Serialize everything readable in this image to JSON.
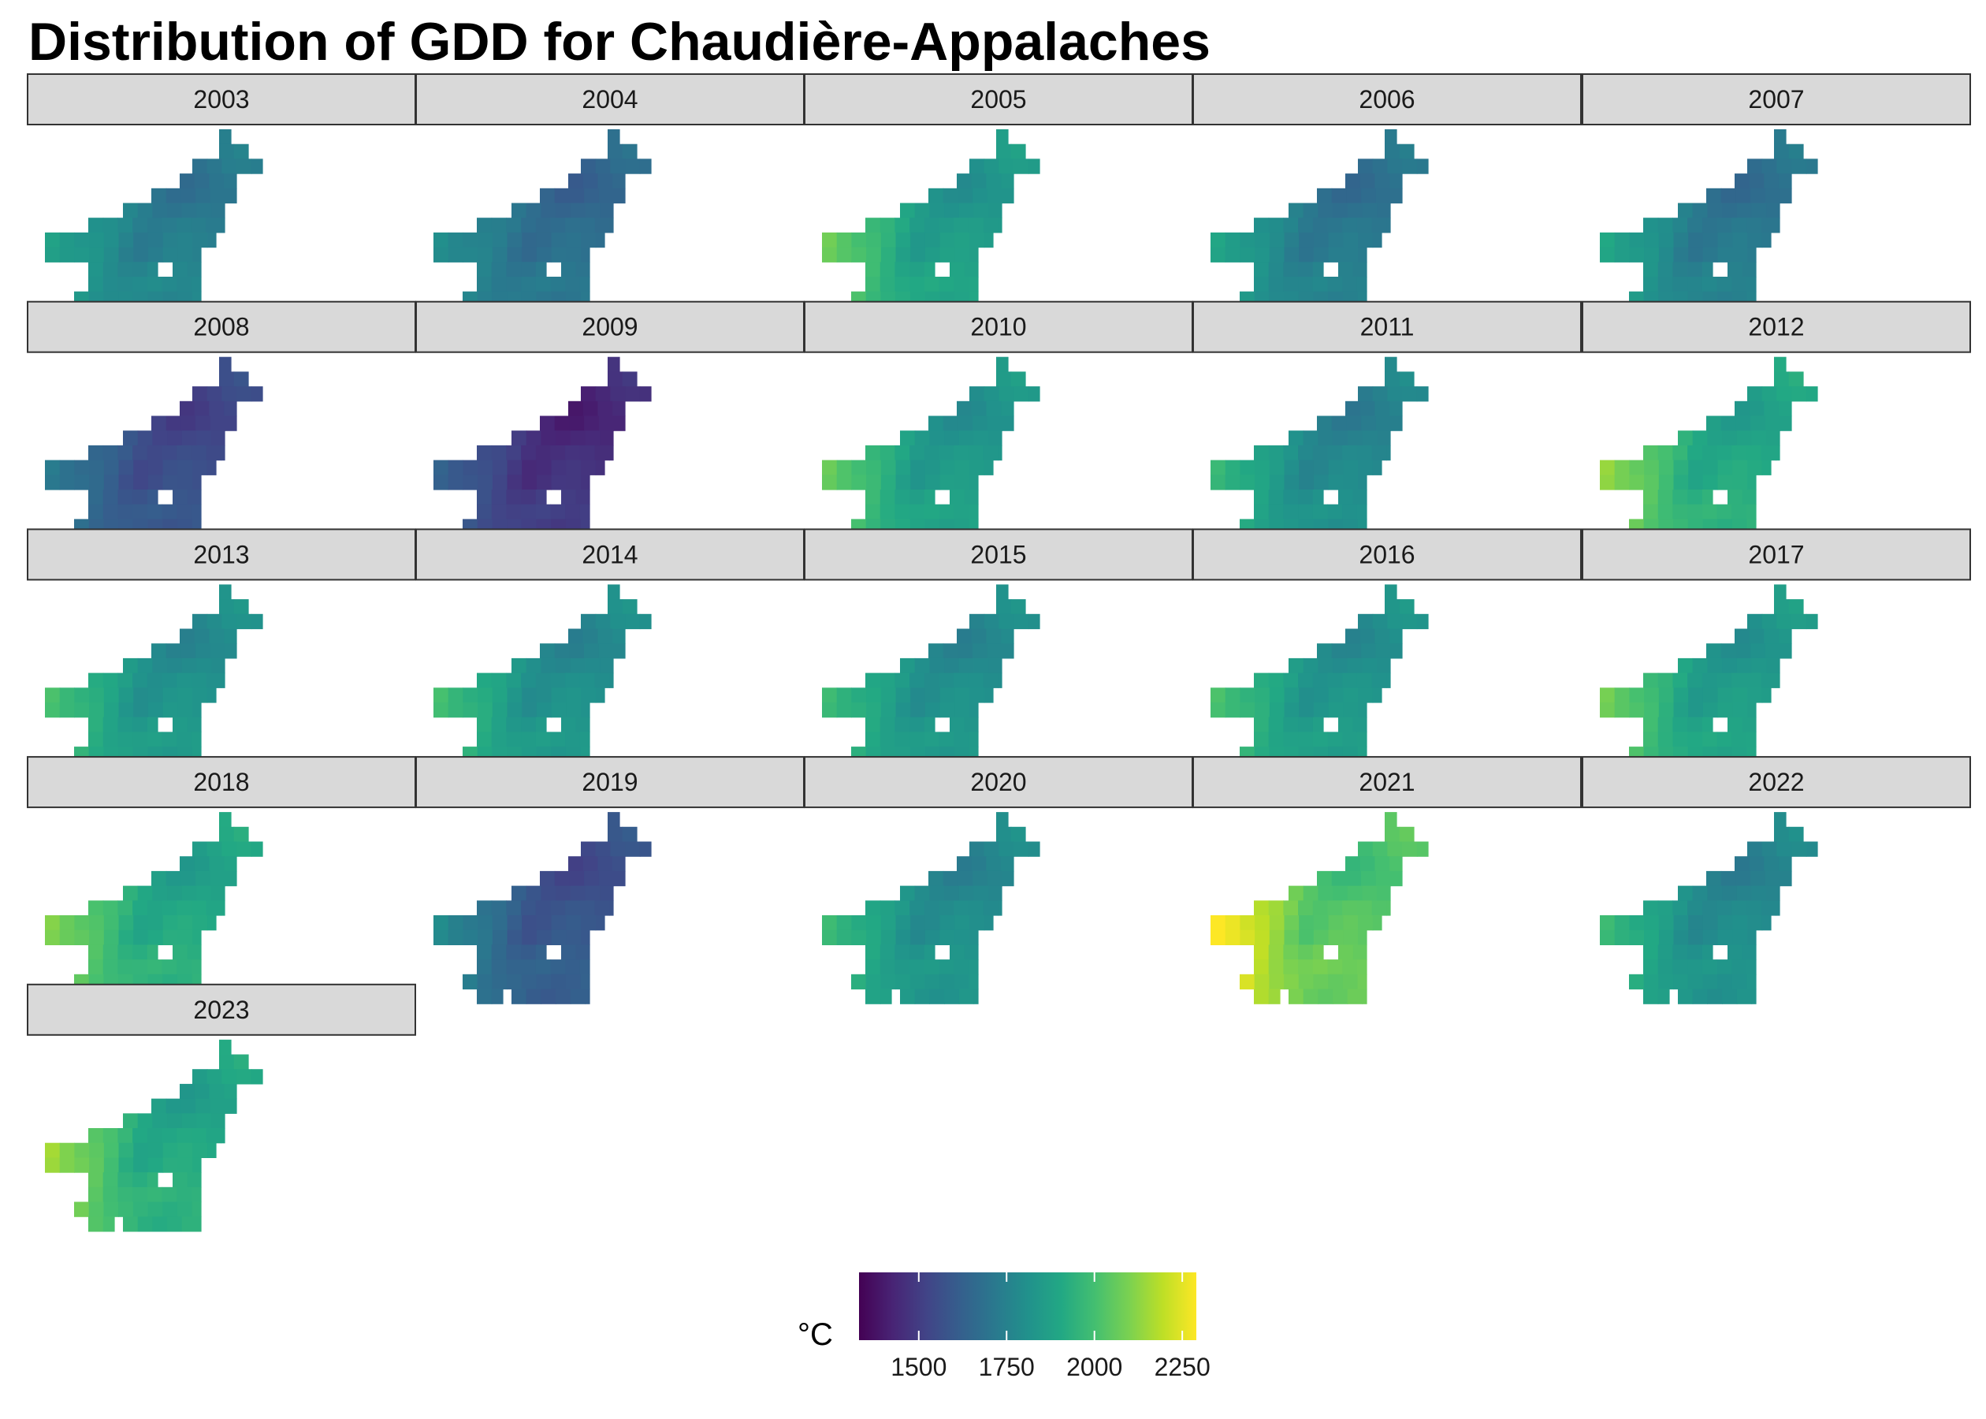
{
  "chart_data": {
    "type": "heatmap",
    "title": "Distribution of GDD for Chaudière-Appalaches",
    "facet_by": "year",
    "panels": [
      {
        "year": "2003",
        "base": 1760,
        "west_gradient": 130
      },
      {
        "year": "2004",
        "base": 1700,
        "west_gradient": 110
      },
      {
        "year": "2005",
        "base": 1880,
        "west_gradient": 220
      },
      {
        "year": "2006",
        "base": 1740,
        "west_gradient": 170
      },
      {
        "year": "2007",
        "base": 1740,
        "west_gradient": 180
      },
      {
        "year": "2008",
        "base": 1580,
        "west_gradient": 160
      },
      {
        "year": "2009",
        "base": 1490,
        "west_gradient": 160
      },
      {
        "year": "2010",
        "base": 1870,
        "west_gradient": 220
      },
      {
        "year": "2011",
        "base": 1800,
        "west_gradient": 190
      },
      {
        "year": "2012",
        "base": 1930,
        "west_gradient": 230
      },
      {
        "year": "2013",
        "base": 1840,
        "west_gradient": 190
      },
      {
        "year": "2014",
        "base": 1830,
        "west_gradient": 190
      },
      {
        "year": "2015",
        "base": 1830,
        "west_gradient": 170
      },
      {
        "year": "2016",
        "base": 1850,
        "west_gradient": 180
      },
      {
        "year": "2017",
        "base": 1880,
        "west_gradient": 230
      },
      {
        "year": "2018",
        "base": 1930,
        "west_gradient": 200
      },
      {
        "year": "2019",
        "base": 1610,
        "west_gradient": 200
      },
      {
        "year": "2020",
        "base": 1820,
        "west_gradient": 180
      },
      {
        "year": "2021",
        "base": 2060,
        "west_gradient": 290
      },
      {
        "year": "2022",
        "base": 1810,
        "west_gradient": 190
      },
      {
        "year": "2023",
        "base": 1930,
        "west_gradient": 250
      }
    ],
    "legend": {
      "title": "°C",
      "position": "bottom",
      "colorscale": "viridis",
      "range": [
        1330,
        2290
      ],
      "ticks": [
        1500,
        1750,
        2000,
        2250
      ]
    },
    "grid": false
  }
}
